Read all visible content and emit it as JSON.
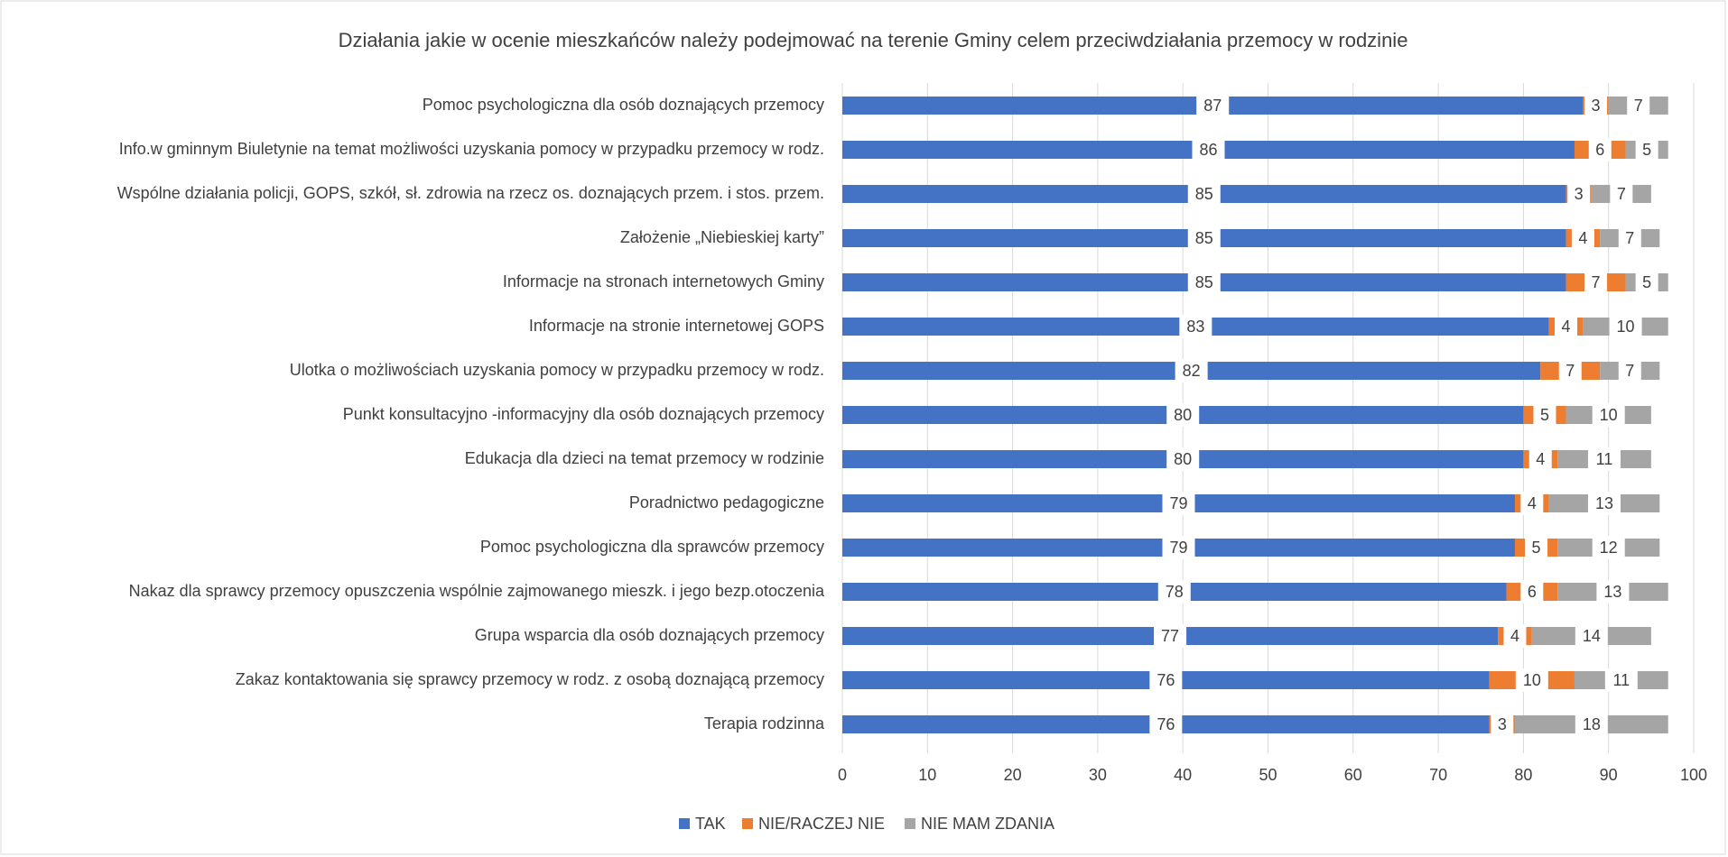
{
  "chart_data": {
    "type": "stacked_barh",
    "title": "Działania jakie w ocenie mieszkańców należy podejmować na terenie Gminy celem przeciwdziałania przemocy w rodzinie",
    "categories": [
      "Pomoc psychologiczna dla osób doznających przemocy",
      "Info.w gminnym Biuletynie na temat możliwości uzyskania pomocy w przypadku przemocy w rodz.",
      "Wspólne działania policji, GOPS, szkół, sł. zdrowia na rzecz os. doznających przem. i stos. przem.",
      "Założenie „Niebieskiej karty”",
      "Informacje na stronach internetowych Gminy",
      "Informacje na stronie internetowej GOPS",
      "Ulotka o możliwościach uzyskania pomocy w przypadku przemocy w rodz.",
      "Punkt konsultacyjno -informacyjny dla osób doznających przemocy",
      "Edukacja dla dzieci na temat przemocy w rodzinie",
      "Poradnictwo pedagogiczne",
      "Pomoc psychologiczna dla sprawców przemocy",
      "Nakaz dla sprawcy przemocy opuszczenia wspólnie zajmowanego mieszk. i jego bezp.otoczenia",
      "Grupa wsparcia dla osób doznających przemocy",
      "Zakaz kontaktowania się sprawcy przemocy w rodz. z osobą doznającą przemocy",
      "Terapia rodzinna"
    ],
    "series": [
      {
        "name": "TAK",
        "color": "#4472c4",
        "values": [
          87,
          86,
          85,
          85,
          85,
          83,
          82,
          80,
          80,
          79,
          79,
          78,
          77,
          76,
          76
        ]
      },
      {
        "name": "NIE/RACZEJ NIE",
        "color": "#ed7d31",
        "values": [
          3,
          6,
          3,
          4,
          7,
          4,
          7,
          5,
          4,
          4,
          5,
          6,
          4,
          10,
          3
        ]
      },
      {
        "name": "NIE MAM ZDANIA",
        "color": "#a5a5a5",
        "values": [
          7,
          5,
          7,
          7,
          5,
          10,
          7,
          10,
          11,
          13,
          12,
          13,
          14,
          11,
          18
        ]
      }
    ],
    "xlim": [
      0,
      100
    ],
    "xticks": [
      0,
      10,
      20,
      30,
      40,
      50,
      60,
      70,
      80,
      90,
      100
    ],
    "grid": true,
    "legend": "bottom"
  }
}
